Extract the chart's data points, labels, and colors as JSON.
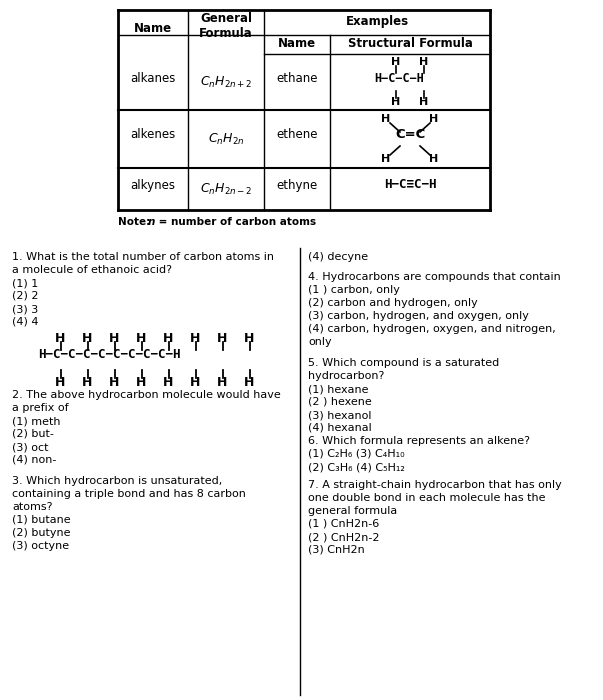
{
  "bg_color": "#ffffff",
  "table": {
    "note": "Note: n = number of carbon atoms"
  },
  "q1_lines": [
    "1. What is the total number of carbon atoms in",
    "a molecule of ethanoic acid?",
    "(1) 1",
    "(2) 2",
    "(3) 3",
    "(4) 4"
  ],
  "q2_lines": [
    "2. The above hydrocarbon molecule would have",
    "a prefix of",
    "(1) meth",
    "(2) but-",
    "(3) oct",
    "(4) non-"
  ],
  "q3_lines": [
    "3. Which hydrocarbon is unsaturated,",
    "containing a triple bond and has 8 carbon",
    "atoms?",
    "(1) butane",
    "(2) butyne",
    "(3) octyne"
  ],
  "q4_decyne": "(4) decyne",
  "q4_lines": [
    "4. Hydrocarbons are compounds that contain",
    "(1 ) carbon, only",
    "(2) carbon and hydrogen, only",
    "(3) carbon, hydrogen, and oxygen, only",
    "(4) carbon, hydrogen, oxygen, and nitrogen,",
    "only"
  ],
  "q5_lines": [
    "5. Which compound is a saturated",
    "hydrocarbon?",
    "(1) hexane",
    "(2 ) hexene",
    "(3) hexanol",
    "(4) hexanal"
  ],
  "q6_lines": [
    "6. Which formula represents an alkene?"
  ],
  "q6_opt1": "(1) C₂H₆ (3) C₄H₁₀",
  "q6_opt2": "(2) C₃H₆ (4) C₅H₁₂",
  "q7_lines": [
    "7. A straight-chain hydrocarbon that has only",
    "one double bond in each molecule has the",
    "general formula",
    "(1 ) CnH2n-6",
    "(2 ) CnH2n-2",
    "(3) CnH2n"
  ]
}
